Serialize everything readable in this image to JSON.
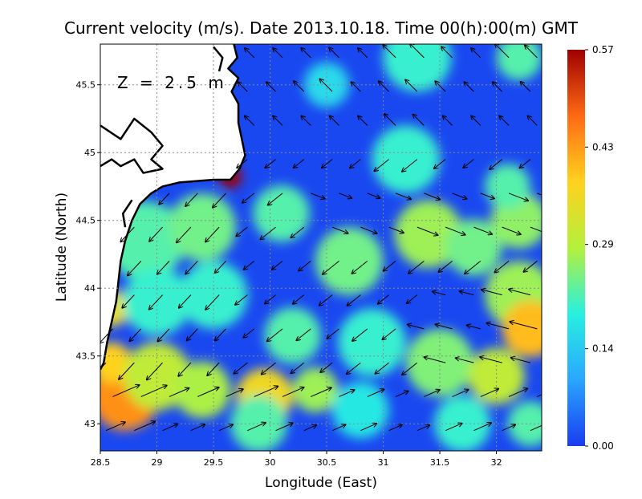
{
  "title": "Current velocity (m/s). Date 2013.10.18. Time 00(h):00(m) GMT",
  "depth_label": "Z = 2.5 m",
  "colorbar": {
    "min": 0.0,
    "max": 0.57,
    "ticks": [
      {
        "value": 0.0,
        "label": "0.00"
      },
      {
        "value": 0.14,
        "label": "0.14"
      },
      {
        "value": 0.29,
        "label": "0.29"
      },
      {
        "value": 0.43,
        "label": "0.43"
      },
      {
        "value": 0.57,
        "label": "0.57"
      }
    ],
    "colors": [
      "#1a3cf0",
      "#2aa6ff",
      "#28f0e0",
      "#b4f03c",
      "#ffd21e",
      "#ff6a14",
      "#9e0000"
    ]
  },
  "chart_data": {
    "type": "heatmap",
    "title": "Current velocity (m/s). Date 2013.10.18. Time 00(h):00(m) GMT",
    "xlabel": "Longitude (East)",
    "ylabel": "Latitude (North)",
    "xlim": [
      28.5,
      32.4
    ],
    "ylim": [
      42.8,
      45.8
    ],
    "grid": true,
    "x_ticks": [
      {
        "value": 28.5,
        "label": "28.5"
      },
      {
        "value": 29,
        "label": "29"
      },
      {
        "value": 29.5,
        "label": "29.5"
      },
      {
        "value": 30,
        "label": "30"
      },
      {
        "value": 30.5,
        "label": "30.5"
      },
      {
        "value": 31,
        "label": "31"
      },
      {
        "value": 31.5,
        "label": "31.5"
      },
      {
        "value": 32,
        "label": "32"
      }
    ],
    "y_ticks": [
      {
        "value": 43,
        "label": "43"
      },
      {
        "value": 43.5,
        "label": "43.5"
      },
      {
        "value": 44,
        "label": "44"
      },
      {
        "value": 44.5,
        "label": "44.5"
      },
      {
        "value": 45,
        "label": "45"
      },
      {
        "value": 45.5,
        "label": "45.5"
      }
    ],
    "speed_blobs": [
      {
        "lon": 29.65,
        "lat": 44.82,
        "r": 0.1,
        "v": 0.57
      },
      {
        "lon": 28.72,
        "lat": 43.2,
        "r": 0.3,
        "v": 0.44
      },
      {
        "lon": 28.6,
        "lat": 43.45,
        "r": 0.18,
        "v": 0.38
      },
      {
        "lon": 28.6,
        "lat": 43.85,
        "r": 0.16,
        "v": 0.35
      },
      {
        "lon": 29.0,
        "lat": 43.35,
        "r": 0.3,
        "v": 0.3
      },
      {
        "lon": 29.4,
        "lat": 43.25,
        "r": 0.25,
        "v": 0.28
      },
      {
        "lon": 29.95,
        "lat": 43.2,
        "r": 0.25,
        "v": 0.36
      },
      {
        "lon": 30.4,
        "lat": 43.25,
        "r": 0.2,
        "v": 0.27
      },
      {
        "lon": 29.9,
        "lat": 43.0,
        "r": 0.25,
        "v": 0.22
      },
      {
        "lon": 28.9,
        "lat": 44.35,
        "r": 0.35,
        "v": 0.22
      },
      {
        "lon": 29.4,
        "lat": 44.45,
        "r": 0.3,
        "v": 0.24
      },
      {
        "lon": 29.0,
        "lat": 43.9,
        "r": 0.3,
        "v": 0.2
      },
      {
        "lon": 29.5,
        "lat": 43.95,
        "r": 0.3,
        "v": 0.2
      },
      {
        "lon": 30.1,
        "lat": 44.55,
        "r": 0.25,
        "v": 0.22
      },
      {
        "lon": 30.7,
        "lat": 44.2,
        "r": 0.3,
        "v": 0.24
      },
      {
        "lon": 30.2,
        "lat": 43.65,
        "r": 0.25,
        "v": 0.22
      },
      {
        "lon": 30.9,
        "lat": 43.6,
        "r": 0.3,
        "v": 0.2
      },
      {
        "lon": 31.4,
        "lat": 44.4,
        "r": 0.3,
        "v": 0.27
      },
      {
        "lon": 31.8,
        "lat": 44.3,
        "r": 0.25,
        "v": 0.24
      },
      {
        "lon": 32.2,
        "lat": 44.5,
        "r": 0.25,
        "v": 0.26
      },
      {
        "lon": 32.1,
        "lat": 44.75,
        "r": 0.2,
        "v": 0.22
      },
      {
        "lon": 31.2,
        "lat": 44.95,
        "r": 0.3,
        "v": 0.2
      },
      {
        "lon": 32.2,
        "lat": 43.95,
        "r": 0.3,
        "v": 0.27
      },
      {
        "lon": 32.3,
        "lat": 43.7,
        "r": 0.25,
        "v": 0.4
      },
      {
        "lon": 31.5,
        "lat": 43.45,
        "r": 0.3,
        "v": 0.25
      },
      {
        "lon": 32.0,
        "lat": 43.35,
        "r": 0.25,
        "v": 0.3
      },
      {
        "lon": 31.7,
        "lat": 43.0,
        "r": 0.25,
        "v": 0.2
      },
      {
        "lon": 32.3,
        "lat": 43.0,
        "r": 0.2,
        "v": 0.22
      },
      {
        "lon": 31.3,
        "lat": 45.7,
        "r": 0.3,
        "v": 0.2
      },
      {
        "lon": 32.2,
        "lat": 45.7,
        "r": 0.2,
        "v": 0.22
      },
      {
        "lon": 30.5,
        "lat": 45.5,
        "r": 0.2,
        "v": 0.16
      },
      {
        "lon": 30.8,
        "lat": 43.1,
        "r": 0.25,
        "v": 0.18
      }
    ],
    "flow_field": {
      "lon_start": 28.55,
      "lon_step": 0.25,
      "lat_start": 42.95,
      "lat_step": 0.25,
      "cols": 16,
      "rows": 12
    },
    "land_polygon": [
      [
        28.5,
        45.8
      ],
      [
        29.68,
        45.8
      ],
      [
        29.71,
        45.7
      ],
      [
        29.63,
        45.62
      ],
      [
        29.72,
        45.55
      ],
      [
        29.66,
        45.45
      ],
      [
        29.72,
        45.36
      ],
      [
        29.72,
        45.22
      ],
      [
        29.75,
        45.1
      ],
      [
        29.78,
        44.98
      ],
      [
        29.73,
        44.88
      ],
      [
        29.65,
        44.8
      ],
      [
        29.5,
        44.8
      ],
      [
        29.2,
        44.78
      ],
      [
        29.05,
        44.75
      ],
      [
        28.95,
        44.7
      ],
      [
        28.85,
        44.62
      ],
      [
        28.78,
        44.5
      ],
      [
        28.72,
        44.35
      ],
      [
        28.68,
        44.2
      ],
      [
        28.66,
        44.05
      ],
      [
        28.64,
        43.9
      ],
      [
        28.6,
        43.75
      ],
      [
        28.56,
        43.6
      ],
      [
        28.53,
        43.45
      ],
      [
        28.5,
        43.4
      ]
    ],
    "coast_extra": [
      [
        [
          28.5,
          45.2
        ],
        [
          28.68,
          45.1
        ],
        [
          28.8,
          45.25
        ],
        [
          28.95,
          45.15
        ],
        [
          29.05,
          45.05
        ],
        [
          28.95,
          44.95
        ],
        [
          29.05,
          44.88
        ],
        [
          28.88,
          44.85
        ],
        [
          28.8,
          44.95
        ],
        [
          28.68,
          44.9
        ],
        [
          28.6,
          44.95
        ],
        [
          28.5,
          44.9
        ]
      ],
      [
        [
          29.5,
          45.78
        ],
        [
          29.58,
          45.7
        ],
        [
          29.55,
          45.6
        ]
      ],
      [
        [
          28.78,
          44.65
        ],
        [
          28.7,
          44.55
        ],
        [
          28.72,
          44.45
        ]
      ]
    ]
  }
}
